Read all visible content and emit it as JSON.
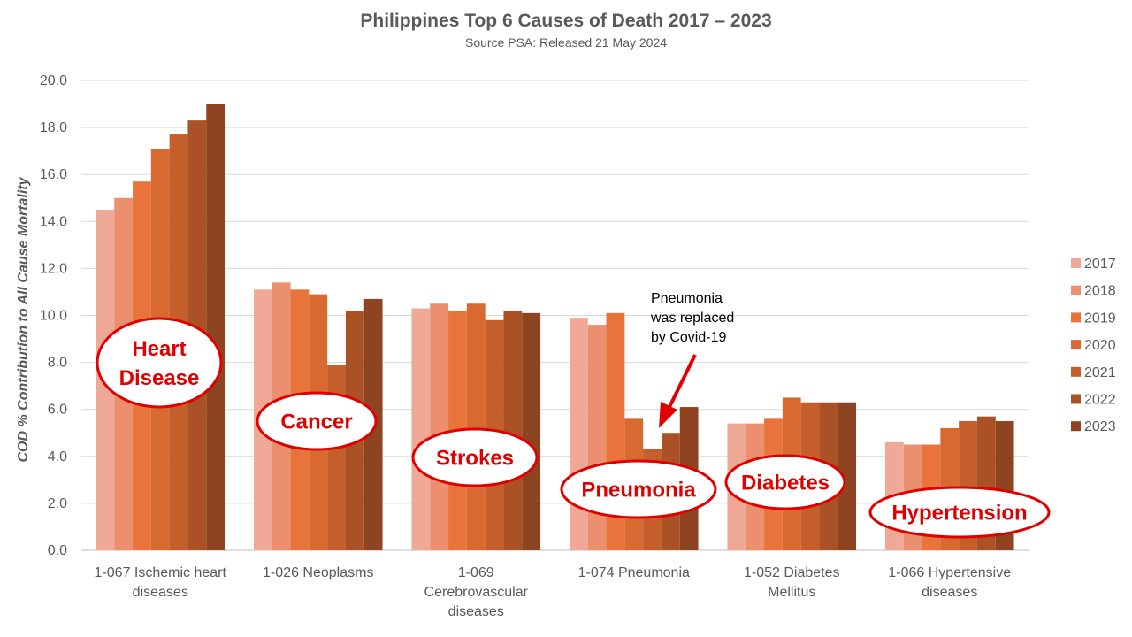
{
  "chart_data": {
    "type": "bar",
    "title": "Philippines Top 6 Causes of Death 2017 – 2023",
    "subtitle": "Source PSA: Released 21 May 2024",
    "ylabel": "COD % Contribution to All Cause Mortality",
    "xlabel": "",
    "ylim": [
      0,
      20
    ],
    "yticks": [
      "0.0",
      "2.0",
      "4.0",
      "6.0",
      "8.0",
      "10.0",
      "12.0",
      "14.0",
      "16.0",
      "18.0",
      "20.0"
    ],
    "grid": true,
    "legend_position": "right",
    "categories": [
      [
        "1-067  Ischemic heart",
        "diseases"
      ],
      [
        "1-026  Neoplasms"
      ],
      [
        "1-069",
        "Cerebrovascular",
        "diseases"
      ],
      [
        "1-074  Pneumonia"
      ],
      [
        "1-052  Diabetes",
        "Mellitus"
      ],
      [
        "1-066  Hypertensive",
        "diseases"
      ]
    ],
    "series": [
      {
        "name": "2017",
        "color": "#F0A996",
        "values": [
          14.5,
          11.1,
          10.3,
          9.9,
          5.4,
          4.6
        ]
      },
      {
        "name": "2018",
        "color": "#EC8F6E",
        "values": [
          15.0,
          11.4,
          10.5,
          9.6,
          5.4,
          4.5
        ]
      },
      {
        "name": "2019",
        "color": "#E8743C",
        "values": [
          15.7,
          11.1,
          10.2,
          10.1,
          5.6,
          4.5
        ]
      },
      {
        "name": "2020",
        "color": "#D86A31",
        "values": [
          17.1,
          10.9,
          10.5,
          5.6,
          6.5,
          5.2
        ]
      },
      {
        "name": "2021",
        "color": "#C45F2B",
        "values": [
          17.7,
          7.9,
          9.8,
          4.3,
          6.3,
          5.5
        ]
      },
      {
        "name": "2022",
        "color": "#AA5226",
        "values": [
          18.3,
          10.2,
          10.2,
          5.0,
          6.3,
          5.7
        ]
      },
      {
        "name": "2023",
        "color": "#8E4420",
        "values": [
          19.0,
          10.7,
          10.1,
          6.1,
          6.3,
          5.5
        ]
      }
    ],
    "annotations": {
      "note": [
        "Pneumonia",
        "was replaced",
        "by Covid-19"
      ],
      "callouts": [
        [
          "Heart",
          "Disease"
        ],
        [
          "Cancer"
        ],
        [
          "Strokes"
        ],
        [
          "Pneumonia"
        ],
        [
          "Diabetes"
        ],
        [
          "Hypertension"
        ]
      ],
      "callout_color": "#E00000"
    }
  }
}
